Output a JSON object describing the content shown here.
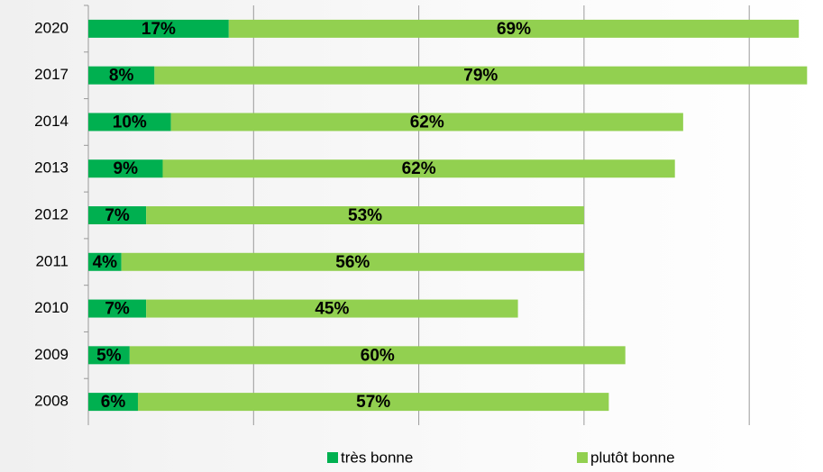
{
  "chart_data": {
    "type": "stacked-bar-horizontal",
    "categories": [
      "2020",
      "2017",
      "2014",
      "2013",
      "2012",
      "2011",
      "2010",
      "2009",
      "2008"
    ],
    "series": [
      {
        "name": "très bonne",
        "color": "#00b050",
        "values": [
          17,
          8,
          10,
          9,
          7,
          4,
          7,
          5,
          6
        ],
        "value_labels": [
          "17%",
          "8%",
          "10%",
          "9%",
          "7%",
          "4%",
          "7%",
          "5%",
          "6%"
        ]
      },
      {
        "name": "plutôt bonne",
        "color": "#92d050",
        "values": [
          69,
          79,
          62,
          62,
          53,
          56,
          45,
          60,
          57
        ],
        "value_labels": [
          "69%",
          "79%",
          "62%",
          "62%",
          "53%",
          "56%",
          "45%",
          "60%",
          "57%"
        ]
      }
    ],
    "xlim": [
      0,
      88
    ],
    "xticks": [
      0,
      20,
      40,
      60,
      80
    ],
    "grid": true,
    "legend": "bottom"
  }
}
